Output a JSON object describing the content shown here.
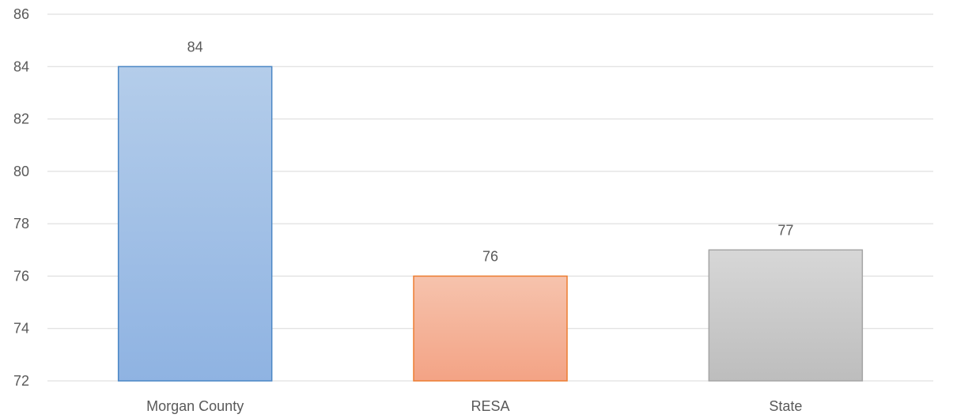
{
  "chart_data": {
    "type": "bar",
    "categories": [
      "Morgan County",
      "RESA",
      "State"
    ],
    "values": [
      84,
      76,
      77
    ],
    "data_labels": [
      "84",
      "76",
      "77"
    ],
    "title": "",
    "xlabel": "",
    "ylabel": "",
    "ylim": [
      72,
      86
    ],
    "yticks": [
      72,
      74,
      76,
      78,
      80,
      82,
      84,
      86
    ],
    "grid": true,
    "legend": "none",
    "colors": {
      "bars": [
        {
          "top": "#b4cdea",
          "bottom": "#8fb3e2",
          "stroke": "#4a86c5"
        },
        {
          "top": "#f6c3ad",
          "bottom": "#f3a385",
          "stroke": "#ed7d31"
        },
        {
          "top": "#d7d7d7",
          "bottom": "#bdbdbd",
          "stroke": "#a5a5a5"
        }
      ],
      "grid": "#d9d9d9",
      "text": "#595959"
    }
  }
}
